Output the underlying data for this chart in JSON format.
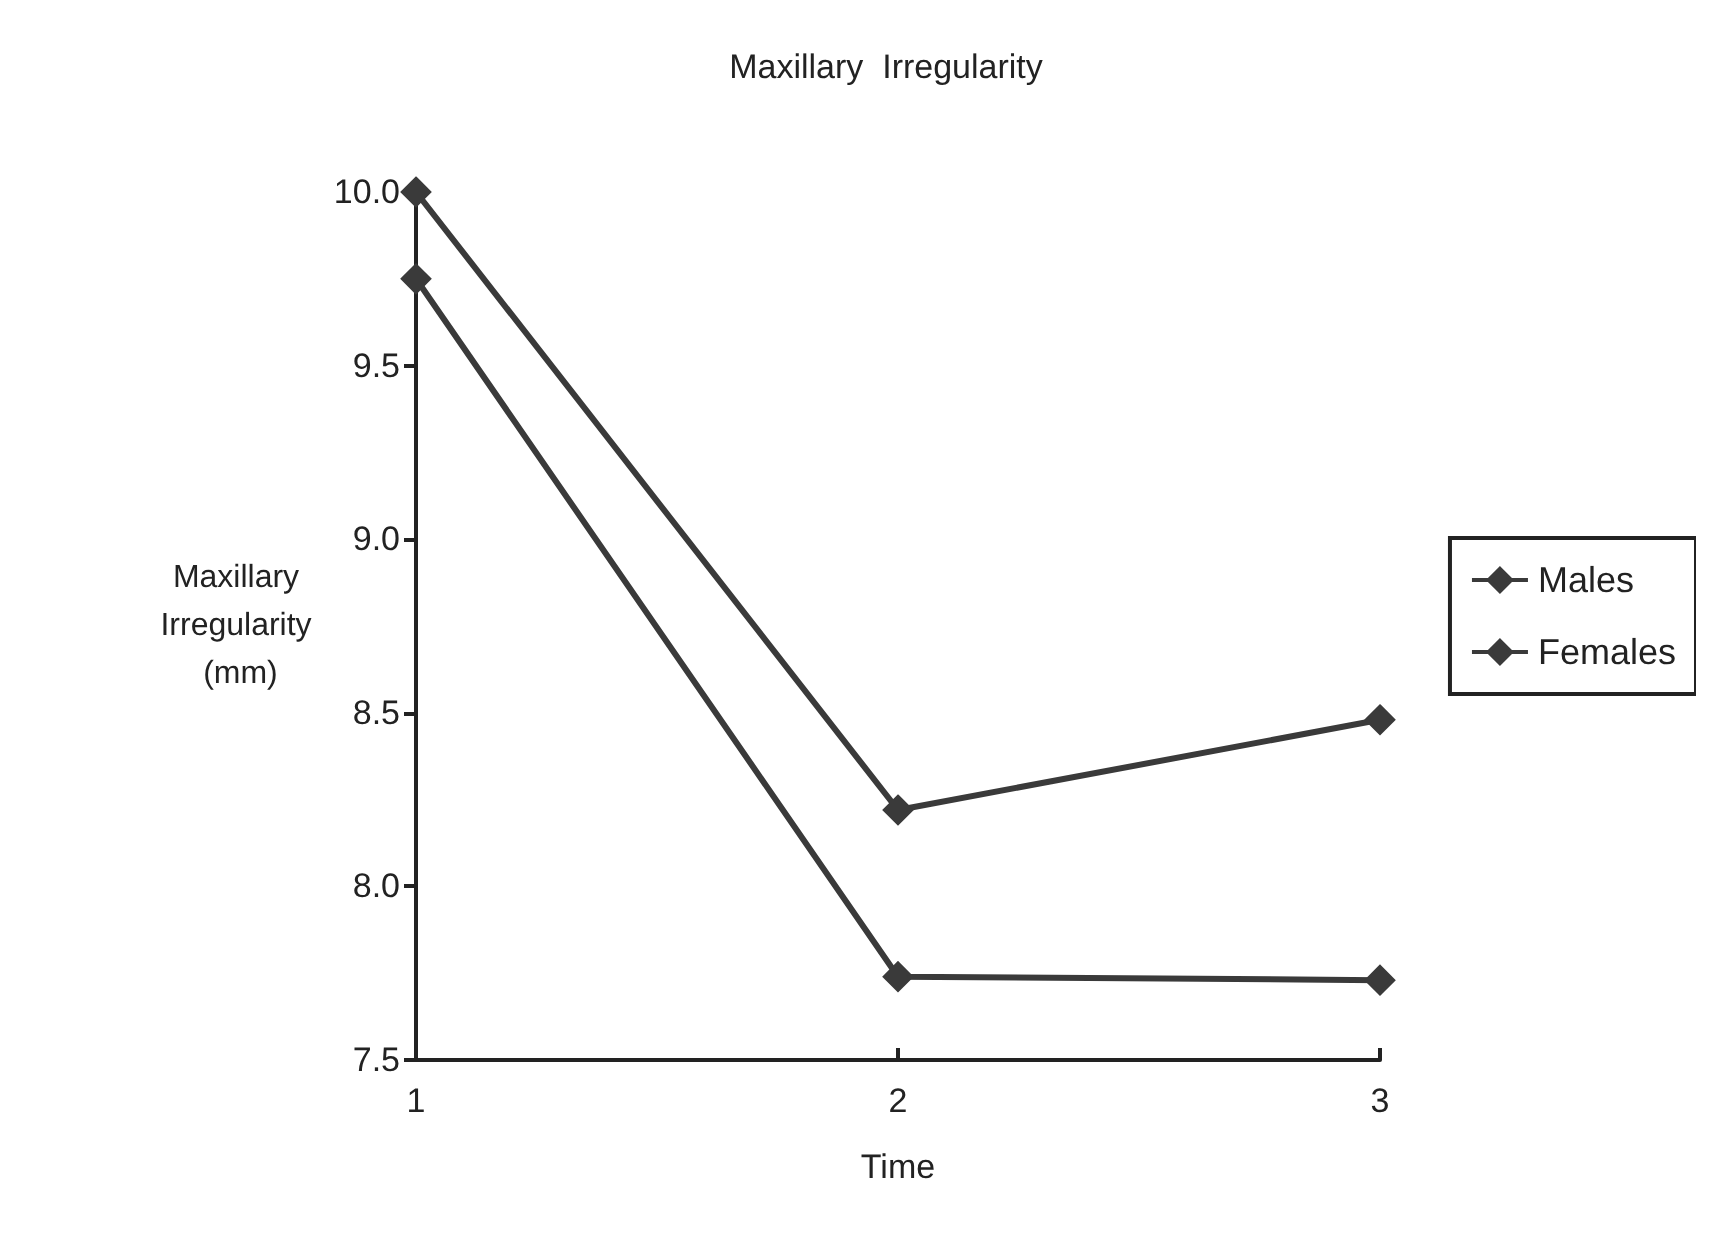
{
  "chart_data": {
    "type": "line",
    "title": "Maxillary  Irregularity",
    "xlabel": "Time",
    "ylabel": "Maxillary\nIrregularity\n (mm)",
    "x": [
      1,
      2,
      3
    ],
    "xlim": [
      1,
      3
    ],
    "xticks": [
      1,
      2,
      3
    ],
    "ylim": [
      7.5,
      10
    ],
    "yticks": [
      {
        "value": 7.5,
        "label": "7.5"
      },
      {
        "value": 8,
        "label": "8.0"
      },
      {
        "value": 8.5,
        "label": "8.5"
      },
      {
        "value": 9,
        "label": "9.0"
      },
      {
        "value": 9.5,
        "label": "9.5"
      },
      {
        "value": 10,
        "label": "10.0"
      }
    ],
    "series": [
      {
        "name": "Males",
        "color": "#3a3a3a",
        "marker": "diamond",
        "values": [
          10.0,
          8.22,
          8.48
        ]
      },
      {
        "name": "Females",
        "color": "#3a3a3a",
        "marker": "diamond",
        "values": [
          9.75,
          7.74,
          7.73
        ]
      }
    ],
    "grid": false,
    "legend": "right",
    "line_style": "solid"
  }
}
